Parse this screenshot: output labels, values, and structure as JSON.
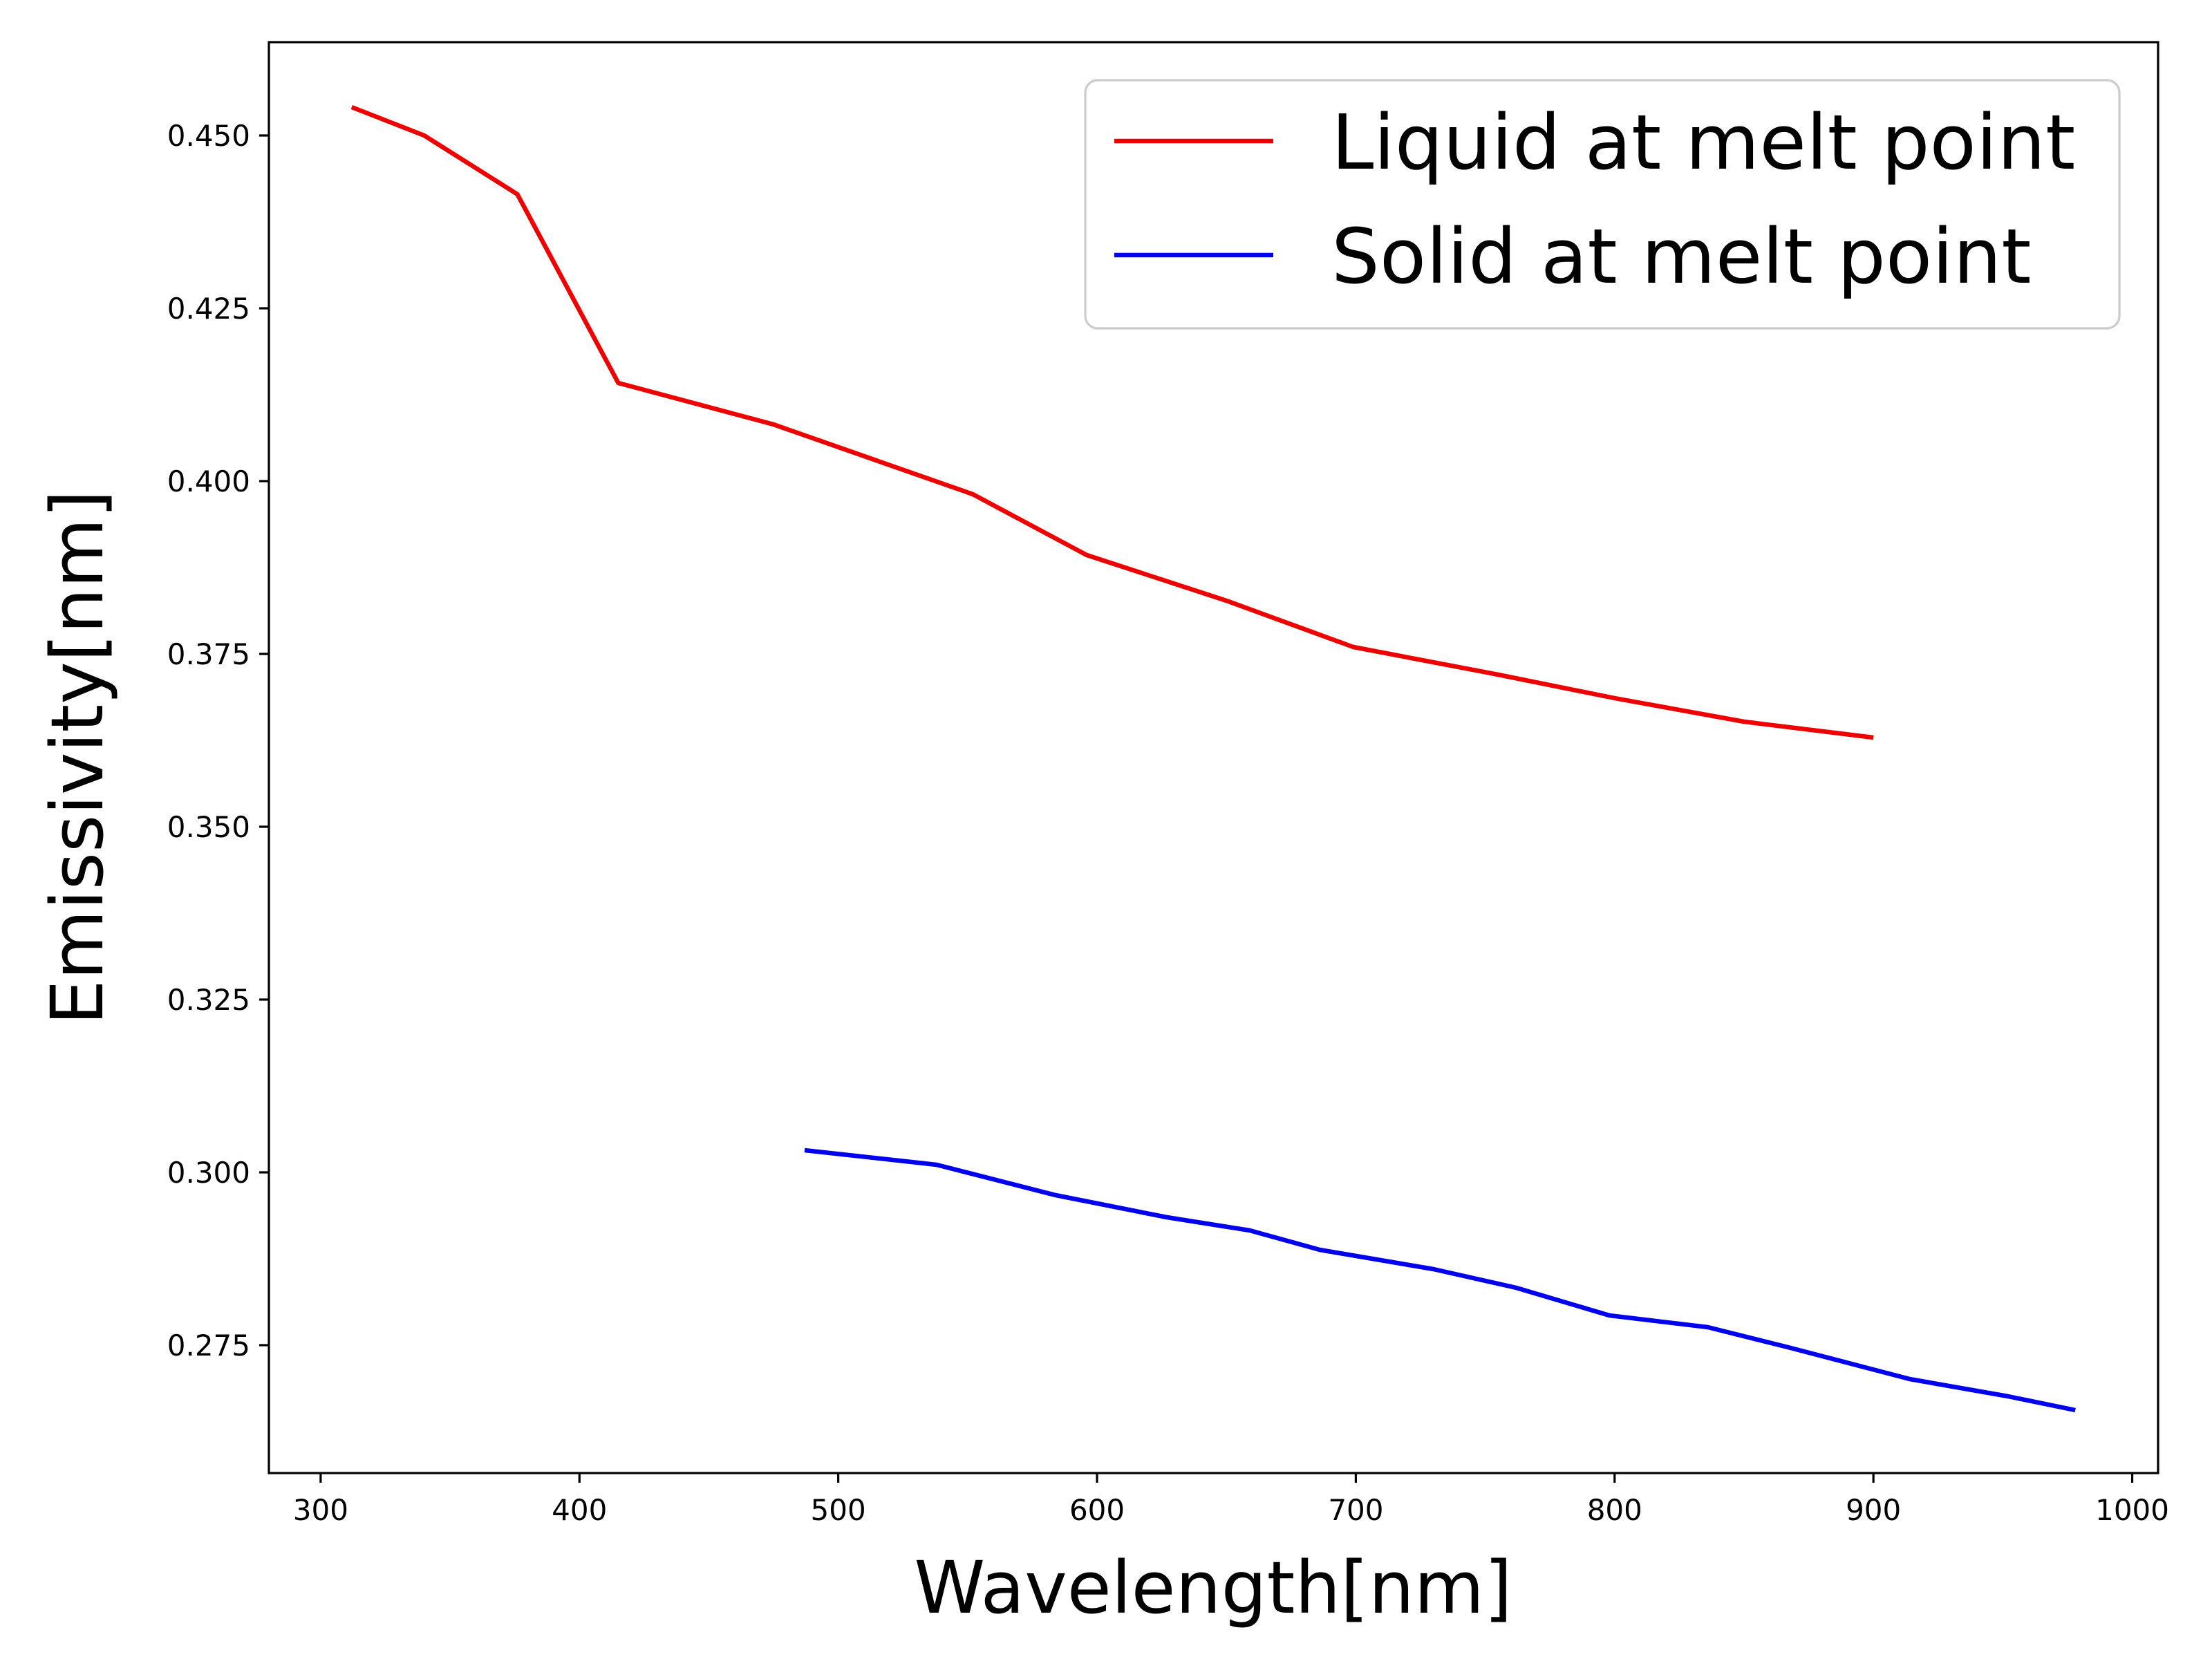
{
  "chart_data": {
    "type": "line",
    "title": "",
    "xlabel": "Wavelength[nm]",
    "ylabel": "Emissivity[nm]",
    "xlim": [
      280,
      1010
    ],
    "ylim": [
      0.2565,
      0.4635
    ],
    "xticks": [
      300,
      400,
      500,
      600,
      700,
      800,
      900,
      1000
    ],
    "yticks": [
      0.275,
      0.3,
      0.325,
      0.35,
      0.375,
      0.4,
      0.425,
      0.45
    ],
    "xtick_labels": [
      "300",
      "400",
      "500",
      "600",
      "700",
      "800",
      "900",
      "1000"
    ],
    "ytick_labels": [
      "0.275",
      "0.300",
      "0.325",
      "0.350",
      "0.375",
      "0.400",
      "0.425",
      "0.450"
    ],
    "legend_position": "top-right",
    "series": [
      {
        "name": "Liquid at melt point",
        "color": "#ee0000",
        "x": [
          312,
          340,
          376,
          415,
          475,
          552,
          596,
          650,
          699,
          755,
          800,
          850,
          900
        ],
        "y": [
          0.4541,
          0.45,
          0.4415,
          0.4142,
          0.4082,
          0.3981,
          0.3893,
          0.3827,
          0.376,
          0.372,
          0.3686,
          0.3652,
          0.3629
        ]
      },
      {
        "name": "Solid at melt point",
        "color": "#0000ee",
        "x": [
          487,
          538,
          584,
          627,
          659,
          686,
          730,
          762,
          798,
          836,
          867,
          914,
          952,
          978
        ],
        "y": [
          0.3032,
          0.3011,
          0.2967,
          0.2935,
          0.2916,
          0.2888,
          0.286,
          0.2833,
          0.2793,
          0.2776,
          0.2747,
          0.2701,
          0.2676,
          0.2656
        ]
      }
    ]
  }
}
